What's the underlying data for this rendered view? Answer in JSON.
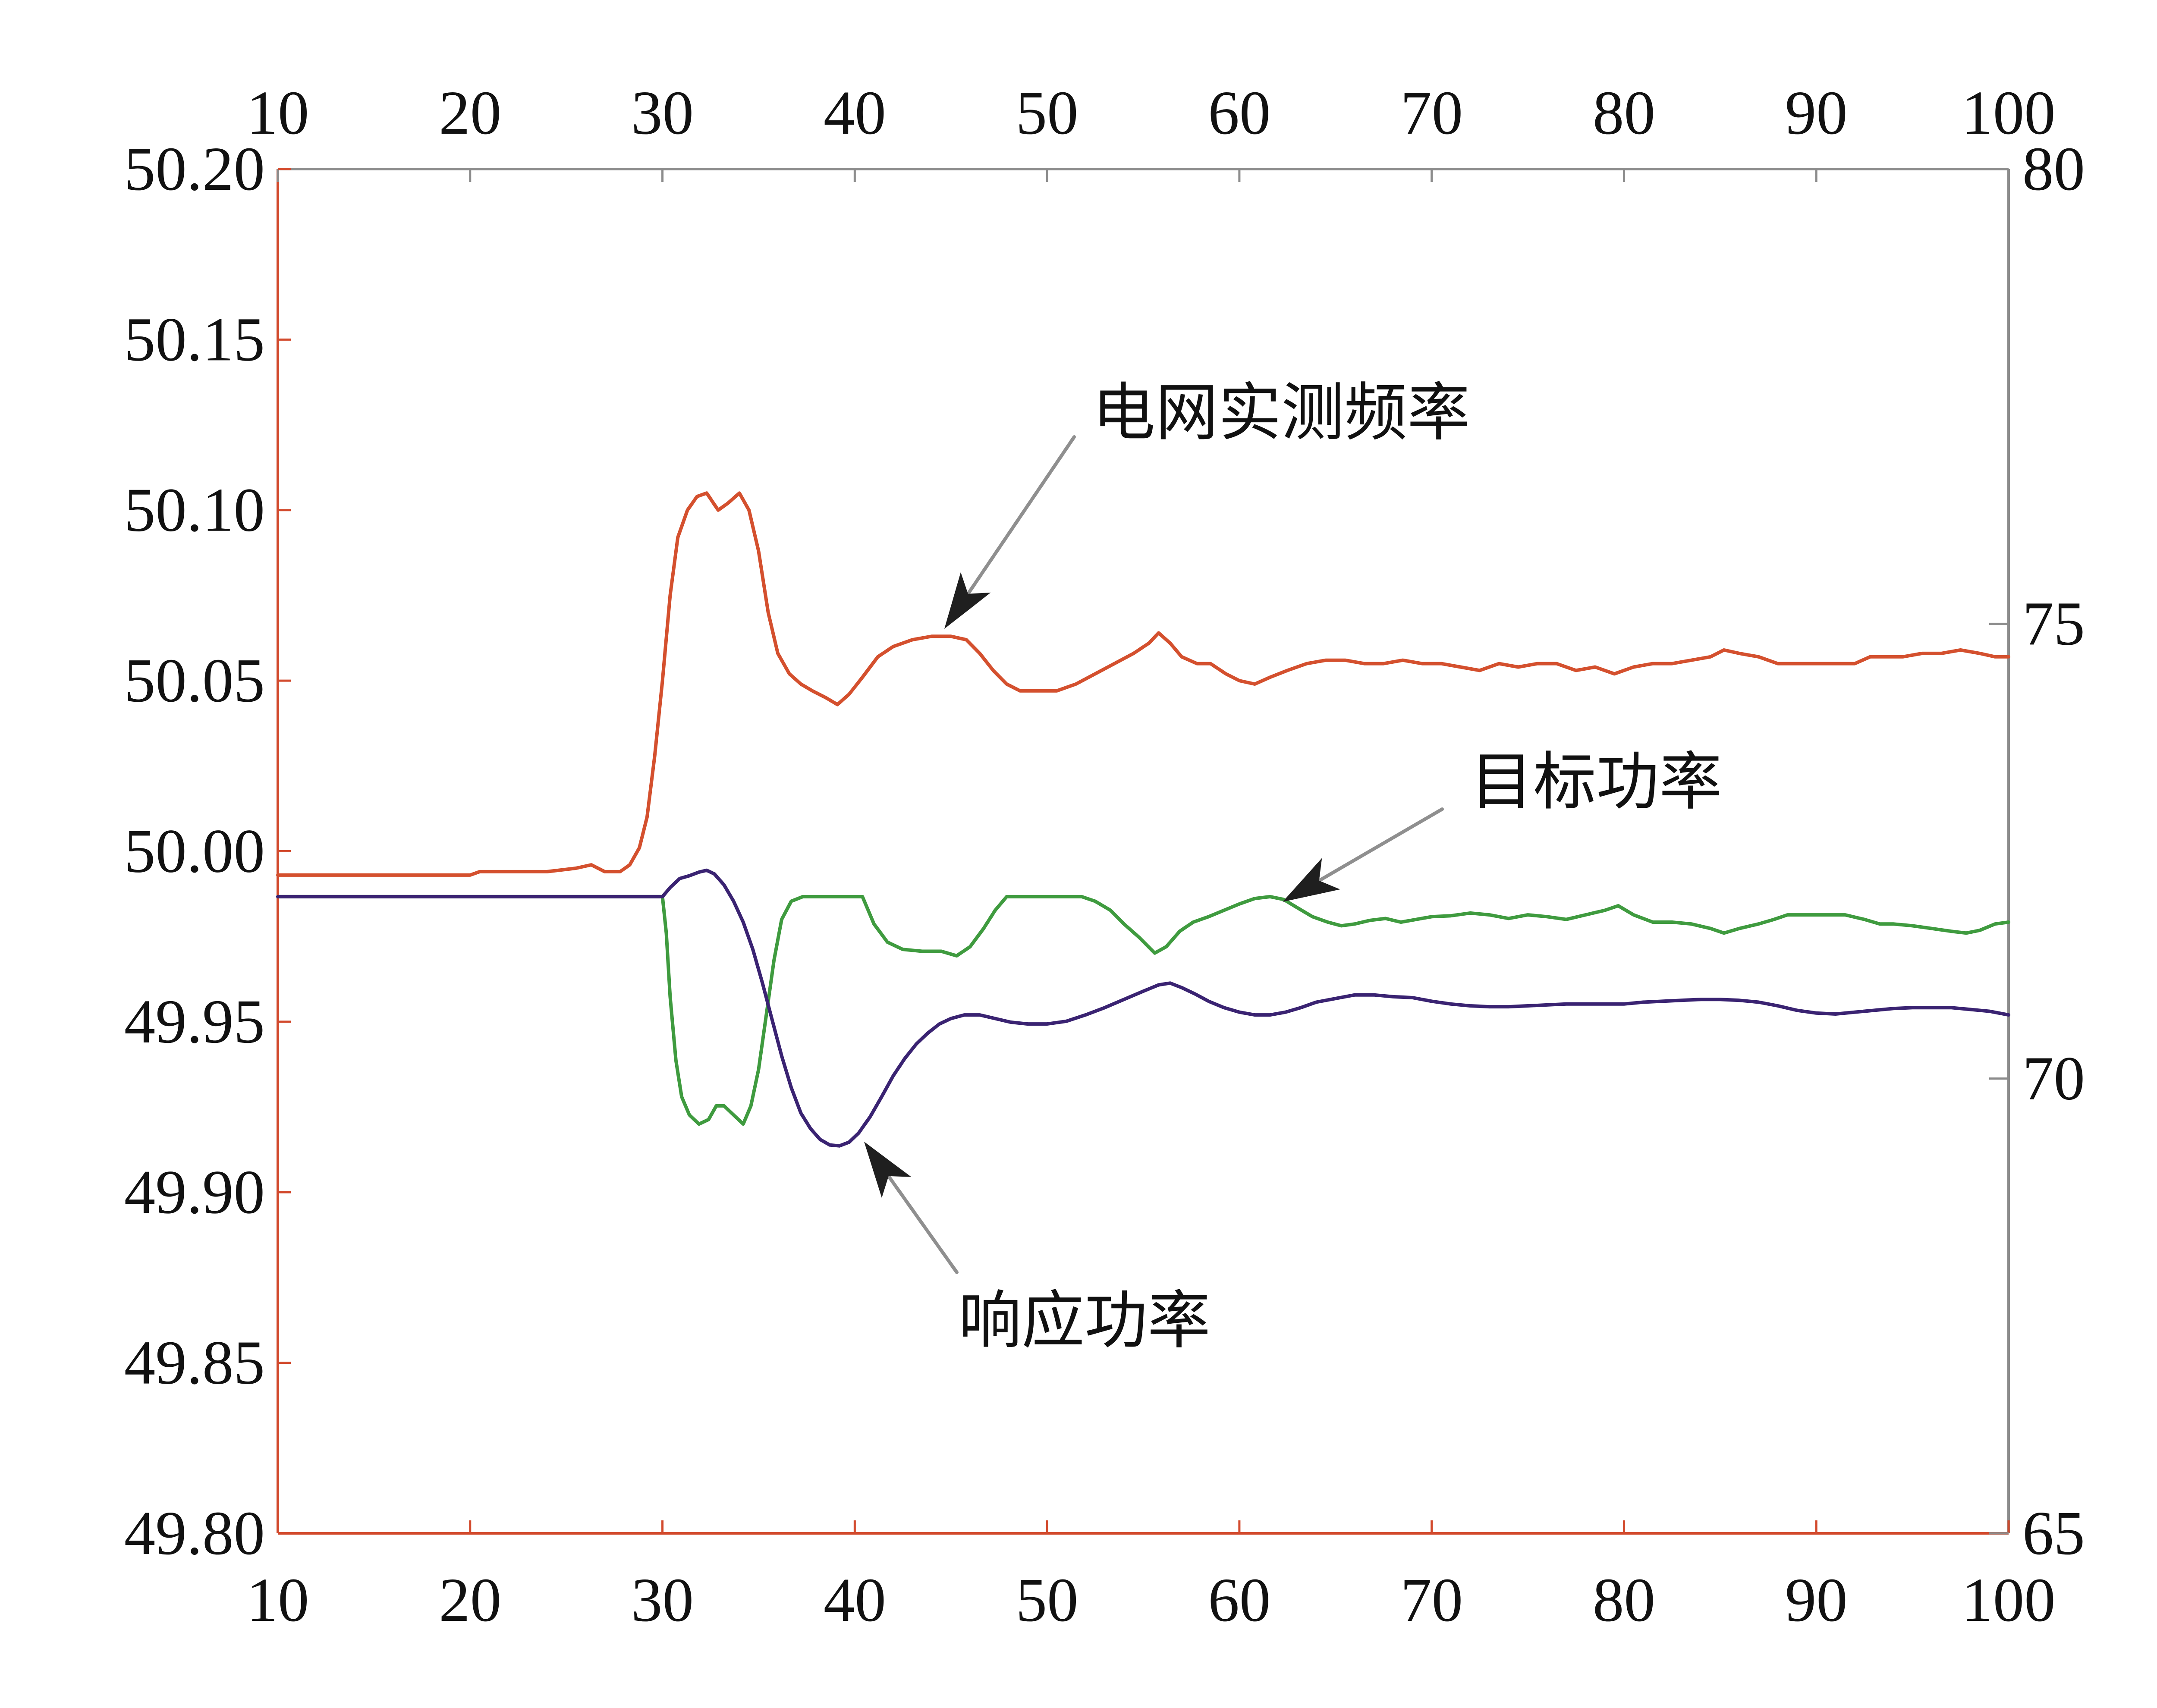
{
  "chart_data": {
    "type": "line",
    "grid": false,
    "x_range": [
      10,
      100
    ],
    "x_ticks": [
      "10",
      "20",
      "30",
      "40",
      "50",
      "60",
      "70",
      "80",
      "90",
      "100"
    ],
    "y_axes": [
      {
        "position": "left",
        "range": [
          49.8,
          50.2
        ],
        "ticks": [
          "50.20",
          "50.15",
          "50.10",
          "50.05",
          "50.00",
          "49.95",
          "49.90",
          "49.85",
          "49.80"
        ],
        "color": "#d24a2d"
      },
      {
        "position": "right",
        "range": [
          65,
          80
        ],
        "ticks": [
          "80",
          "75",
          "70",
          "65"
        ],
        "color": "#8c8c8c"
      }
    ],
    "series": [
      {
        "name": "电网实测频率",
        "y_axis": 0,
        "color": "#d4502e",
        "data": [
          [
            10,
            49.993
          ],
          [
            15,
            49.993
          ],
          [
            20,
            49.993
          ],
          [
            20.5,
            49.994
          ],
          [
            24,
            49.994
          ],
          [
            25.5,
            49.995
          ],
          [
            26.3,
            49.996
          ],
          [
            27,
            49.994
          ],
          [
            27.8,
            49.994
          ],
          [
            28.3,
            49.996
          ],
          [
            28.8,
            50.001
          ],
          [
            29.2,
            50.01
          ],
          [
            29.6,
            50.028
          ],
          [
            30.0,
            50.05
          ],
          [
            30.4,
            50.075
          ],
          [
            30.8,
            50.092
          ],
          [
            31.3,
            50.1
          ],
          [
            31.8,
            50.104
          ],
          [
            32.3,
            50.105
          ],
          [
            32.9,
            50.1
          ],
          [
            33.4,
            50.102
          ],
          [
            34.0,
            50.105
          ],
          [
            34.5,
            50.1
          ],
          [
            35.0,
            50.088
          ],
          [
            35.5,
            50.07
          ],
          [
            36.0,
            50.058
          ],
          [
            36.6,
            50.052
          ],
          [
            37.2,
            50.049
          ],
          [
            37.8,
            50.047
          ],
          [
            38.5,
            50.045
          ],
          [
            39.1,
            50.043
          ],
          [
            39.7,
            50.046
          ],
          [
            40.4,
            50.051
          ],
          [
            41.2,
            50.057
          ],
          [
            42.0,
            50.06
          ],
          [
            43.0,
            50.062
          ],
          [
            44.0,
            50.063
          ],
          [
            45.0,
            50.063
          ],
          [
            45.8,
            50.062
          ],
          [
            46.5,
            50.058
          ],
          [
            47.2,
            50.053
          ],
          [
            47.9,
            50.049
          ],
          [
            48.6,
            50.047
          ],
          [
            49.5,
            50.047
          ],
          [
            50.5,
            50.047
          ],
          [
            51.5,
            50.049
          ],
          [
            52.5,
            50.052
          ],
          [
            53.5,
            50.055
          ],
          [
            54.5,
            50.058
          ],
          [
            55.3,
            50.061
          ],
          [
            55.8,
            50.064
          ],
          [
            56.4,
            50.061
          ],
          [
            57.0,
            50.057
          ],
          [
            57.8,
            50.055
          ],
          [
            58.5,
            50.055
          ],
          [
            59.3,
            50.052
          ],
          [
            60.0,
            50.05
          ],
          [
            60.8,
            50.049
          ],
          [
            61.6,
            50.051
          ],
          [
            62.5,
            50.053
          ],
          [
            63.5,
            50.055
          ],
          [
            64.5,
            50.056
          ],
          [
            65.5,
            50.056
          ],
          [
            66.5,
            50.055
          ],
          [
            67.5,
            50.055
          ],
          [
            68.5,
            50.056
          ],
          [
            69.5,
            50.055
          ],
          [
            70.5,
            50.055
          ],
          [
            71.5,
            50.054
          ],
          [
            72.5,
            50.053
          ],
          [
            73.5,
            50.055
          ],
          [
            74.5,
            50.054
          ],
          [
            75.5,
            50.055
          ],
          [
            76.5,
            50.055
          ],
          [
            77.5,
            50.053
          ],
          [
            78.5,
            50.054
          ],
          [
            79.5,
            50.052
          ],
          [
            80.5,
            50.054
          ],
          [
            81.5,
            50.055
          ],
          [
            82.5,
            50.055
          ],
          [
            83.5,
            50.056
          ],
          [
            84.5,
            50.057
          ],
          [
            85.2,
            50.059
          ],
          [
            86.0,
            50.058
          ],
          [
            87.0,
            50.057
          ],
          [
            88.0,
            50.055
          ],
          [
            89.0,
            50.055
          ],
          [
            90.0,
            50.055
          ],
          [
            91.0,
            50.055
          ],
          [
            92.0,
            50.055
          ],
          [
            92.8,
            50.057
          ],
          [
            93.5,
            50.057
          ],
          [
            94.5,
            50.057
          ],
          [
            95.5,
            50.058
          ],
          [
            96.5,
            50.058
          ],
          [
            97.5,
            50.059
          ],
          [
            98.5,
            50.058
          ],
          [
            99.3,
            50.057
          ],
          [
            100,
            50.057
          ]
        ]
      },
      {
        "name": "目标功率",
        "y_axis": 1,
        "color": "#3f9b3f",
        "data": [
          [
            10,
            72.0
          ],
          [
            30.0,
            72.0
          ],
          [
            30.2,
            71.6
          ],
          [
            30.4,
            70.9
          ],
          [
            30.7,
            70.2
          ],
          [
            31.0,
            69.8
          ],
          [
            31.4,
            69.6
          ],
          [
            31.9,
            69.5
          ],
          [
            32.4,
            69.55
          ],
          [
            32.8,
            69.7
          ],
          [
            33.2,
            69.7
          ],
          [
            33.7,
            69.6
          ],
          [
            34.2,
            69.5
          ],
          [
            34.6,
            69.7
          ],
          [
            35.0,
            70.1
          ],
          [
            35.4,
            70.7
          ],
          [
            35.8,
            71.3
          ],
          [
            36.2,
            71.75
          ],
          [
            36.7,
            71.95
          ],
          [
            37.3,
            72.0
          ],
          [
            40.4,
            72.0
          ],
          [
            41.0,
            71.7
          ],
          [
            41.7,
            71.5
          ],
          [
            42.5,
            71.42
          ],
          [
            43.5,
            71.4
          ],
          [
            44.5,
            71.4
          ],
          [
            45.3,
            71.35
          ],
          [
            46.0,
            71.45
          ],
          [
            46.7,
            71.65
          ],
          [
            47.3,
            71.85
          ],
          [
            47.9,
            72.0
          ],
          [
            51.8,
            72.0
          ],
          [
            52.5,
            71.95
          ],
          [
            53.3,
            71.85
          ],
          [
            54.0,
            71.7
          ],
          [
            54.8,
            71.55
          ],
          [
            55.6,
            71.38
          ],
          [
            56.2,
            71.45
          ],
          [
            56.9,
            71.62
          ],
          [
            57.6,
            71.72
          ],
          [
            58.4,
            71.78
          ],
          [
            59.2,
            71.85
          ],
          [
            60.0,
            71.92
          ],
          [
            60.8,
            71.98
          ],
          [
            61.6,
            72.0
          ],
          [
            62.3,
            71.97
          ],
          [
            63.0,
            71.88
          ],
          [
            63.8,
            71.78
          ],
          [
            64.6,
            71.72
          ],
          [
            65.3,
            71.68
          ],
          [
            66.0,
            71.7
          ],
          [
            66.8,
            71.74
          ],
          [
            67.6,
            71.76
          ],
          [
            68.4,
            71.72
          ],
          [
            69.2,
            71.75
          ],
          [
            70.0,
            71.78
          ],
          [
            71.0,
            71.79
          ],
          [
            72.0,
            71.82
          ],
          [
            73.0,
            71.8
          ],
          [
            74.0,
            71.76
          ],
          [
            75.0,
            71.8
          ],
          [
            76.0,
            71.78
          ],
          [
            77.0,
            71.75
          ],
          [
            78.0,
            71.8
          ],
          [
            79.0,
            71.85
          ],
          [
            79.7,
            71.9
          ],
          [
            80.5,
            71.8
          ],
          [
            81.5,
            71.72
          ],
          [
            82.5,
            71.72
          ],
          [
            83.5,
            71.7
          ],
          [
            84.5,
            71.65
          ],
          [
            85.2,
            71.6
          ],
          [
            86.0,
            71.65
          ],
          [
            87.0,
            71.7
          ],
          [
            87.8,
            71.75
          ],
          [
            88.5,
            71.8
          ],
          [
            89.5,
            71.8
          ],
          [
            90.5,
            71.8
          ],
          [
            91.5,
            71.8
          ],
          [
            92.5,
            71.75
          ],
          [
            93.3,
            71.7
          ],
          [
            94.0,
            71.7
          ],
          [
            95.0,
            71.68
          ],
          [
            96.0,
            71.65
          ],
          [
            97.0,
            71.62
          ],
          [
            97.8,
            71.6
          ],
          [
            98.5,
            71.63
          ],
          [
            99.3,
            71.7
          ],
          [
            100,
            71.72
          ]
        ]
      },
      {
        "name": "响应功率",
        "y_axis": 1,
        "color": "#3a2372",
        "data": [
          [
            10,
            72.0
          ],
          [
            30.0,
            72.0
          ],
          [
            30.4,
            72.1
          ],
          [
            30.9,
            72.2
          ],
          [
            31.4,
            72.23
          ],
          [
            31.9,
            72.27
          ],
          [
            32.3,
            72.29
          ],
          [
            32.7,
            72.25
          ],
          [
            33.2,
            72.13
          ],
          [
            33.7,
            71.95
          ],
          [
            34.2,
            71.72
          ],
          [
            34.7,
            71.42
          ],
          [
            35.2,
            71.05
          ],
          [
            35.7,
            70.65
          ],
          [
            36.2,
            70.25
          ],
          [
            36.7,
            69.9
          ],
          [
            37.2,
            69.62
          ],
          [
            37.7,
            69.45
          ],
          [
            38.2,
            69.33
          ],
          [
            38.7,
            69.27
          ],
          [
            39.2,
            69.26
          ],
          [
            39.7,
            69.3
          ],
          [
            40.2,
            69.4
          ],
          [
            40.8,
            69.58
          ],
          [
            41.4,
            69.8
          ],
          [
            42.0,
            70.03
          ],
          [
            42.6,
            70.22
          ],
          [
            43.2,
            70.38
          ],
          [
            43.8,
            70.5
          ],
          [
            44.4,
            70.6
          ],
          [
            45.0,
            70.66
          ],
          [
            45.7,
            70.7
          ],
          [
            46.5,
            70.7
          ],
          [
            47.3,
            70.66
          ],
          [
            48.1,
            70.62
          ],
          [
            49.0,
            70.6
          ],
          [
            50.0,
            70.6
          ],
          [
            51.0,
            70.63
          ],
          [
            52.0,
            70.7
          ],
          [
            53.0,
            70.78
          ],
          [
            54.0,
            70.87
          ],
          [
            55.0,
            70.96
          ],
          [
            55.8,
            71.03
          ],
          [
            56.4,
            71.05
          ],
          [
            57.0,
            71.0
          ],
          [
            57.7,
            70.93
          ],
          [
            58.4,
            70.85
          ],
          [
            59.2,
            70.78
          ],
          [
            60.0,
            70.73
          ],
          [
            60.8,
            70.7
          ],
          [
            61.6,
            70.7
          ],
          [
            62.4,
            70.73
          ],
          [
            63.2,
            70.78
          ],
          [
            64.0,
            70.84
          ],
          [
            65.0,
            70.88
          ],
          [
            66.0,
            70.92
          ],
          [
            67.0,
            70.92
          ],
          [
            68.0,
            70.9
          ],
          [
            69.0,
            70.89
          ],
          [
            70.0,
            70.85
          ],
          [
            71.0,
            70.82
          ],
          [
            72.0,
            70.8
          ],
          [
            73.0,
            70.79
          ],
          [
            74.0,
            70.79
          ],
          [
            75.0,
            70.8
          ],
          [
            76.0,
            70.81
          ],
          [
            77.0,
            70.82
          ],
          [
            78.0,
            70.82
          ],
          [
            79.0,
            70.82
          ],
          [
            80.0,
            70.82
          ],
          [
            81.0,
            70.84
          ],
          [
            82.0,
            70.85
          ],
          [
            83.0,
            70.86
          ],
          [
            84.0,
            70.87
          ],
          [
            85.0,
            70.87
          ],
          [
            86.0,
            70.86
          ],
          [
            87.0,
            70.84
          ],
          [
            88.0,
            70.8
          ],
          [
            89.0,
            70.75
          ],
          [
            90.0,
            70.72
          ],
          [
            91.0,
            70.71
          ],
          [
            92.0,
            70.73
          ],
          [
            93.0,
            70.75
          ],
          [
            94.0,
            70.77
          ],
          [
            95.0,
            70.78
          ],
          [
            96.0,
            70.78
          ],
          [
            97.0,
            70.78
          ],
          [
            98.0,
            70.76
          ],
          [
            99.0,
            70.74
          ],
          [
            100,
            70.7
          ]
        ]
      }
    ]
  }
}
